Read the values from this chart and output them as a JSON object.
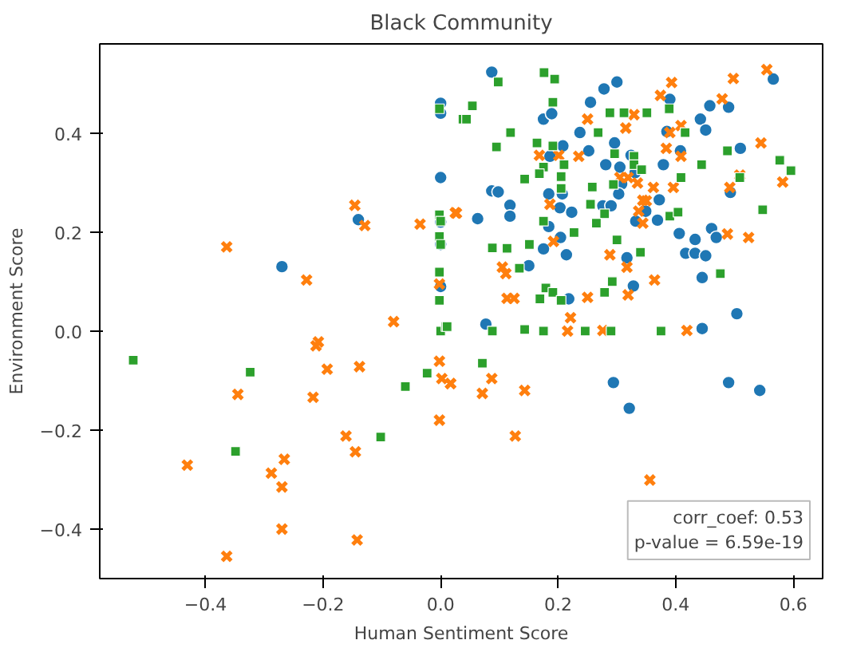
{
  "chart_data": {
    "type": "scatter",
    "title": "Black Community",
    "xlabel": "Human Sentiment Score",
    "ylabel": "Environment Score",
    "grid": false,
    "xlim": [
      -0.58,
      0.65
    ],
    "ylim": [
      -0.5,
      0.58
    ],
    "xticks": [
      {
        "value": -0.4,
        "label": "−0.4"
      },
      {
        "value": -0.2,
        "label": "−0.2"
      },
      {
        "value": 0.0,
        "label": "0.0"
      },
      {
        "value": 0.2,
        "label": "0.2"
      },
      {
        "value": 0.4,
        "label": "0.4"
      },
      {
        "value": 0.6,
        "label": "0.6"
      }
    ],
    "yticks": [
      {
        "value": -0.4,
        "label": "−0.4"
      },
      {
        "value": -0.2,
        "label": "−0.2"
      },
      {
        "value": 0.0,
        "label": "0.0"
      },
      {
        "value": 0.2,
        "label": "0.2"
      },
      {
        "value": 0.4,
        "label": "0.4"
      }
    ],
    "annotations": [
      "corr_coef: 0.53",
      "p-value = 6.59e-19"
    ],
    "series": [
      {
        "color": "#1f77b4",
        "marker": "circle",
        "x": [
          0.0,
          0.0,
          0.0,
          0.0,
          0.0,
          0.0,
          -0.14,
          -0.27,
          0.087,
          0.278,
          0.3,
          0.255,
          0.175,
          0.189,
          0.237,
          0.296,
          0.252,
          0.208,
          0.186,
          0.281,
          0.305,
          0.324,
          0.331,
          0.308,
          0.303,
          0.379,
          0.408,
          0.385,
          0.39,
          0.442,
          0.451,
          0.458,
          0.49,
          0.566,
          0.51,
          0.493,
          0.087,
          0.098,
          0.118,
          0.118,
          0.063,
          0.184,
          0.207,
          0.203,
          0.223,
          0.184,
          0.204,
          0.175,
          0.214,
          0.15,
          0.276,
          0.29,
          0.349,
          0.372,
          0.369,
          0.332,
          0.406,
          0.433,
          0.461,
          0.469,
          0.417,
          0.433,
          0.451,
          0.317,
          0.328,
          0.445,
          0.218,
          0.077,
          0.504,
          0.445,
          0.294,
          0.321,
          0.49,
          0.543
        ],
        "values": [
          0.46,
          0.44,
          0.31,
          0.22,
          0.175,
          0.09,
          0.225,
          0.13,
          0.523,
          0.489,
          0.503,
          0.462,
          0.428,
          0.439,
          0.401,
          0.38,
          0.364,
          0.374,
          0.353,
          0.336,
          0.331,
          0.355,
          0.32,
          0.297,
          0.277,
          0.336,
          0.364,
          0.403,
          0.468,
          0.428,
          0.406,
          0.455,
          0.452,
          0.509,
          0.369,
          0.28,
          0.283,
          0.281,
          0.254,
          0.232,
          0.227,
          0.277,
          0.277,
          0.249,
          0.24,
          0.211,
          0.189,
          0.166,
          0.154,
          0.132,
          0.253,
          0.253,
          0.242,
          0.265,
          0.224,
          0.222,
          0.197,
          0.185,
          0.207,
          0.189,
          0.157,
          0.157,
          0.152,
          0.148,
          0.091,
          0.108,
          0.065,
          0.014,
          0.035,
          0.005,
          -0.104,
          -0.156,
          -0.104,
          -0.12
        ]
      },
      {
        "color": "#ff7f0e",
        "marker": "cross",
        "x": [
          -0.146,
          -0.129,
          -0.364,
          -0.228,
          -0.08,
          -0.035,
          0.025,
          -0.002,
          -0.208,
          -0.212,
          -0.193,
          -0.138,
          -0.345,
          -0.217,
          -0.002,
          0.002,
          0.017,
          -0.002,
          -0.161,
          -0.145,
          -0.266,
          -0.431,
          -0.288,
          -0.27,
          -0.27,
          -0.142,
          -0.364,
          0.555,
          0.498,
          0.393,
          0.374,
          0.479,
          0.329,
          0.25,
          0.315,
          0.409,
          0.39,
          0.545,
          0.384,
          0.409,
          0.168,
          0.201,
          0.235,
          0.305,
          0.319,
          0.335,
          0.362,
          0.396,
          0.492,
          0.582,
          0.509,
          0.186,
          0.344,
          0.35,
          0.337,
          0.344,
          0.027,
          0.192,
          0.488,
          0.524,
          0.105,
          0.111,
          0.288,
          0.317,
          0.364,
          0.319,
          0.25,
          0.113,
          0.125,
          0.221,
          0.276,
          0.419,
          0.017,
          0.071,
          0.087,
          0.143,
          0.127,
          0.356,
          0.216
        ],
        "values": [
          0.254,
          0.213,
          0.17,
          0.103,
          0.019,
          0.216,
          0.239,
          0.095,
          -0.022,
          -0.03,
          -0.077,
          -0.072,
          -0.128,
          -0.134,
          -0.061,
          -0.096,
          -0.106,
          -0.18,
          -0.212,
          -0.244,
          -0.259,
          -0.271,
          -0.287,
          -0.315,
          -0.4,
          -0.422,
          -0.455,
          0.528,
          0.51,
          0.502,
          0.476,
          0.469,
          0.437,
          0.428,
          0.41,
          0.415,
          0.401,
          0.38,
          0.369,
          0.353,
          0.355,
          0.355,
          0.353,
          0.31,
          0.31,
          0.299,
          0.29,
          0.29,
          0.29,
          0.301,
          0.315,
          0.256,
          0.264,
          0.263,
          0.242,
          0.218,
          0.238,
          0.181,
          0.196,
          0.189,
          0.129,
          0.116,
          0.154,
          0.129,
          0.103,
          0.073,
          0.068,
          0.066,
          0.066,
          0.027,
          0.001,
          0.001,
          -0.106,
          -0.126,
          -0.096,
          -0.12,
          -0.212,
          -0.301,
          0.0
        ]
      },
      {
        "color": "#2ca02c",
        "marker": "square",
        "x": [
          -0.002,
          0.038,
          -0.002,
          0.0,
          -0.002,
          0.0,
          -0.002,
          -0.002,
          0.0,
          0.009,
          -0.523,
          -0.324,
          -0.349,
          -0.102,
          -0.06,
          -0.023,
          0.176,
          0.194,
          0.098,
          0.054,
          0.044,
          0.191,
          0.288,
          0.312,
          0.351,
          0.389,
          0.119,
          0.268,
          0.416,
          0.095,
          0.164,
          0.191,
          0.296,
          0.329,
          0.488,
          0.21,
          0.175,
          0.329,
          0.342,
          0.444,
          0.577,
          0.596,
          0.509,
          0.143,
          0.168,
          0.205,
          0.205,
          0.258,
          0.294,
          0.409,
          0.255,
          0.279,
          0.265,
          0.175,
          0.39,
          0.404,
          0.548,
          0.227,
          0.3,
          0.088,
          0.113,
          0.151,
          0.134,
          0.34,
          0.476,
          0.292,
          0.179,
          0.191,
          0.205,
          0.279,
          0.169,
          0.011,
          0.088,
          0.143,
          0.175,
          0.246,
          0.29,
          0.375,
          0.071
        ],
        "values": [
          0.449,
          0.428,
          0.235,
          0.222,
          0.191,
          0.175,
          0.119,
          0.062,
          0.0,
          0.009,
          -0.059,
          -0.083,
          -0.243,
          -0.214,
          -0.112,
          -0.085,
          0.522,
          0.509,
          0.503,
          0.455,
          0.428,
          0.462,
          0.441,
          0.441,
          0.441,
          0.449,
          0.401,
          0.401,
          0.401,
          0.372,
          0.38,
          0.374,
          0.358,
          0.353,
          0.364,
          0.336,
          0.331,
          0.336,
          0.326,
          0.336,
          0.345,
          0.324,
          0.31,
          0.307,
          0.318,
          0.312,
          0.288,
          0.291,
          0.296,
          0.31,
          0.256,
          0.237,
          0.218,
          0.222,
          0.232,
          0.24,
          0.245,
          0.199,
          0.184,
          0.168,
          0.167,
          0.175,
          0.127,
          0.159,
          0.116,
          0.1,
          0.087,
          0.078,
          0.062,
          0.078,
          0.065,
          0.009,
          0.0,
          0.003,
          0.0,
          0.0,
          0.0,
          0.0,
          -0.065
        ]
      }
    ]
  }
}
